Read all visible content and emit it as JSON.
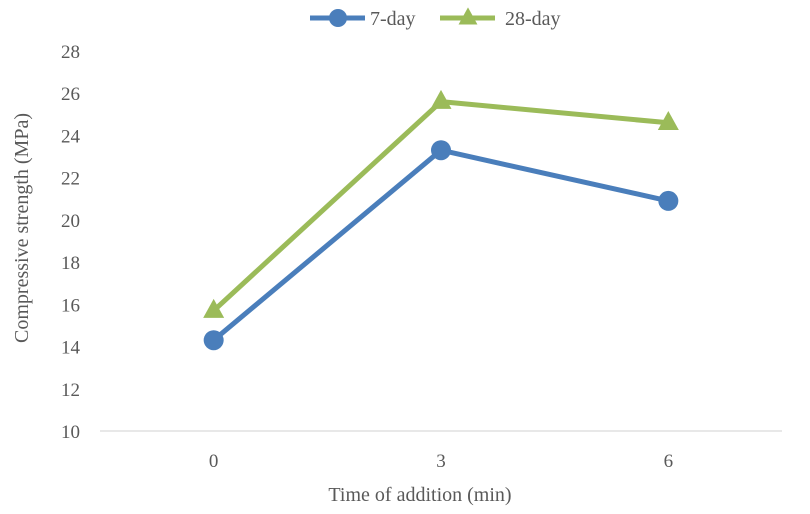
{
  "chart_data": {
    "type": "line",
    "title": "",
    "xlabel": "Time of addition (min)",
    "ylabel": "Compressive strength (MPa)",
    "categories": [
      "0",
      "3",
      "6"
    ],
    "ylim": [
      10,
      28
    ],
    "yticks": [
      10,
      12,
      14,
      16,
      18,
      20,
      22,
      24,
      26,
      28
    ],
    "grid": false,
    "legend_position": "top",
    "series": [
      {
        "name": "7-day",
        "values": [
          14.3,
          23.3,
          20.9
        ],
        "color": "#4a7ebb",
        "marker": "circle"
      },
      {
        "name": "28-day",
        "values": [
          15.7,
          25.6,
          24.6
        ],
        "color": "#9bbb59",
        "marker": "triangle"
      }
    ]
  }
}
